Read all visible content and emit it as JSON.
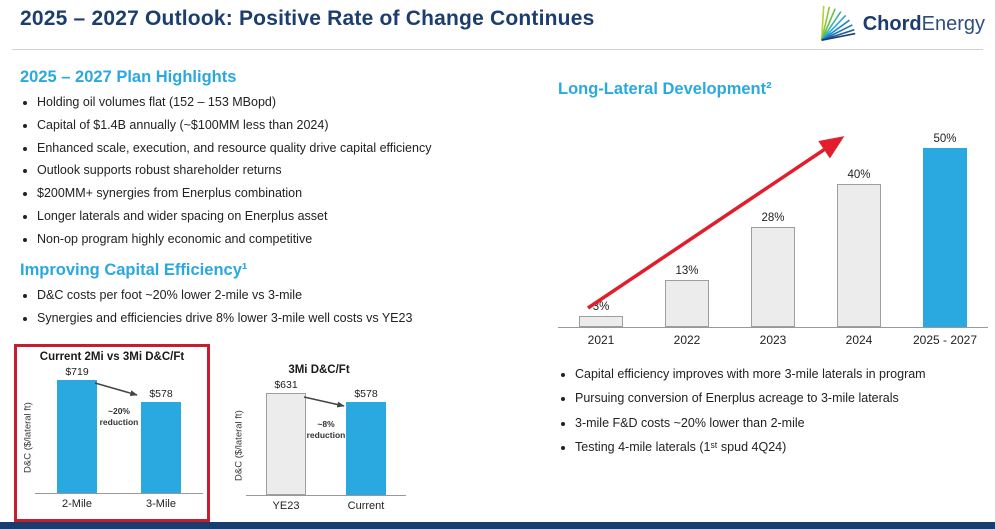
{
  "slide": {
    "title": "2025 – 2027 Outlook: Positive Rate of Change Continues",
    "logo": {
      "brand_bold": "Chord",
      "brand_light": "Energy"
    }
  },
  "colors": {
    "navy": "#1c3e6e",
    "accent_cyan": "#29a9e0",
    "highlight_red": "#c41f2f",
    "bar_gray": "#ececec",
    "trend_arrow_red": "#e01e2d"
  },
  "plan_highlights": {
    "heading": "2025 – 2027 Plan Highlights",
    "bullets": [
      "Holding oil volumes flat (152 – 153 MBopd)",
      "Capital of $1.4B annually (~$100MM less than 2024)",
      "Enhanced scale, execution, and resource quality drive capital efficiency",
      "Outlook supports robust shareholder returns",
      "$200MM+ synergies from Enerplus combination",
      "Longer laterals and wider spacing on Enerplus asset",
      "Non-op program highly economic and competitive"
    ]
  },
  "capital_efficiency": {
    "heading": "Improving Capital Efficiency¹",
    "bullets": [
      "D&C costs per foot ~20% lower 2-mile vs 3-mile",
      "Synergies and efficiencies drive 8% lower 3-mile well costs vs YE23"
    ]
  },
  "long_lateral": {
    "heading": "Long-Lateral Development²",
    "bullets": [
      "Capital efficiency improves with more 3-mile laterals in program",
      "Pursuing conversion of Enerplus acreage to 3-mile laterals",
      "3-mile F&D costs ~20% lower than 2-mile",
      "Testing 4-mile laterals (1ˢᵗ spud 4Q24)"
    ]
  },
  "chart_data": [
    {
      "type": "bar",
      "title": "Current 2Mi vs 3Mi D&C/Ft",
      "xlabel": "",
      "ylabel": "D&C ($/lateral ft)",
      "categories": [
        "2-Mile",
        "3-Mile"
      ],
      "values": [
        719,
        578
      ],
      "value_labels": [
        "$719",
        "$578"
      ],
      "bar_colors": [
        "#29a9e0",
        "#29a9e0"
      ],
      "bar_strokes": [
        null,
        null
      ],
      "annotation": "~20% reduction",
      "ylim": [
        0,
        800
      ],
      "grid": false,
      "legend": false,
      "highlight_box": true
    },
    {
      "type": "bar",
      "title": "3Mi D&C/Ft",
      "xlabel": "",
      "ylabel": "D&C ($/lateral ft)",
      "categories": [
        "YE23",
        "Current"
      ],
      "values": [
        631,
        578
      ],
      "value_labels": [
        "$631",
        "$578"
      ],
      "bar_colors": [
        "#ececec",
        "#29a9e0"
      ],
      "bar_strokes": [
        "#9e9e9e",
        null
      ],
      "annotation": "~8% reduction",
      "ylim": [
        0,
        700
      ],
      "grid": false,
      "legend": false,
      "highlight_box": false
    },
    {
      "type": "bar",
      "title": "Long-Lateral Development²",
      "xlabel": "",
      "ylabel": "",
      "categories": [
        "2021",
        "2022",
        "2023",
        "2024",
        "2025 - 2027"
      ],
      "values": [
        3,
        13,
        28,
        40,
        50
      ],
      "value_labels": [
        "3%",
        "13%",
        "28%",
        "40%",
        "50%"
      ],
      "bar_colors": [
        "#ececec",
        "#ececec",
        "#ececec",
        "#ececec",
        "#29a9e0"
      ],
      "bar_strokes": [
        "#9e9e9e",
        "#9e9e9e",
        "#9e9e9e",
        "#9e9e9e",
        null
      ],
      "annotation": "",
      "ylim": [
        0,
        60
      ],
      "grid": false,
      "legend": false,
      "trend_arrow": true,
      "highlight_box": false
    }
  ]
}
